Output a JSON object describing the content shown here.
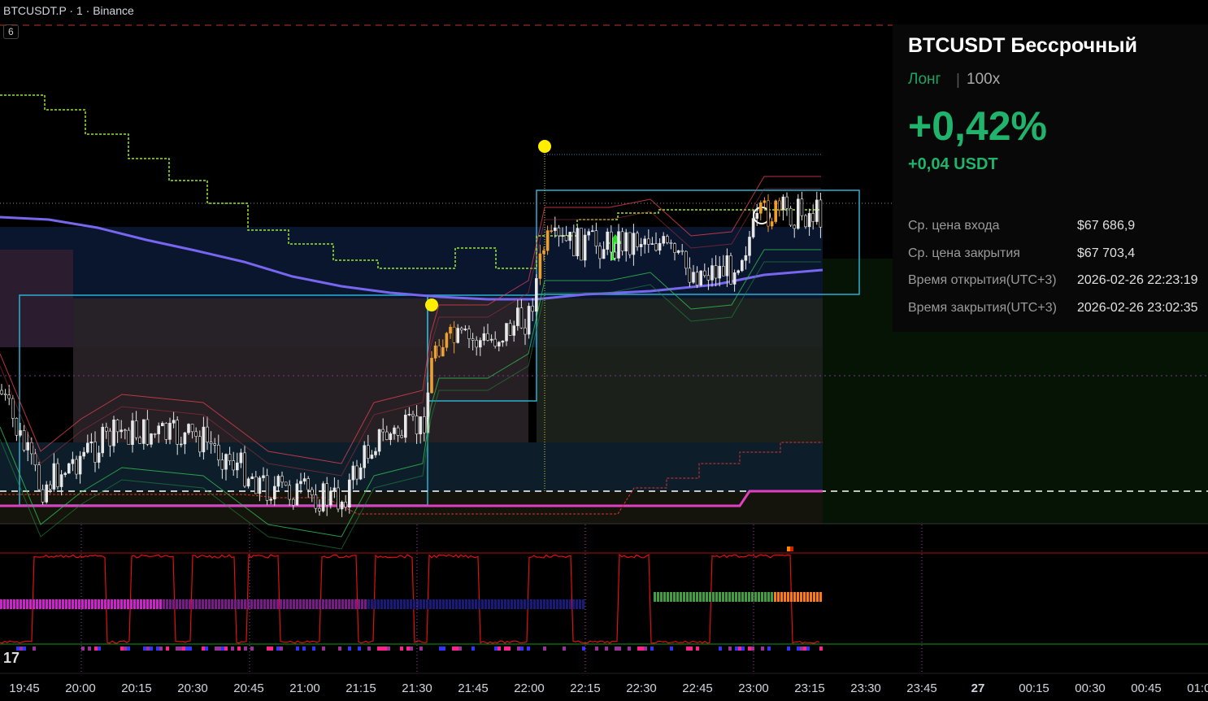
{
  "header": {
    "symbol": "BTCUSDT.P · 1 · Binance",
    "indicator_count": "6"
  },
  "time_axis": [
    "19:45",
    "20:00",
    "20:15",
    "20:30",
    "20:45",
    "21:00",
    "21:15",
    "21:30",
    "21:45",
    "22:00",
    "22:15",
    "22:30",
    "22:45",
    "23:00",
    "23:15",
    "23:30",
    "23:45",
    "27",
    "00:15",
    "00:30",
    "00:45",
    "01:00"
  ],
  "position_card": {
    "title": "BTCUSDT Бессрочный",
    "side": "Лонг",
    "leverage": "100x",
    "pnl_percent": "+0,42%",
    "pnl_amount": "+0,04 USDT",
    "rows": [
      {
        "label": "Ср. цена входа",
        "value": "$67 686,9"
      },
      {
        "label": "Ср. цена закрытия",
        "value": "$67 703,4"
      },
      {
        "label": "Время открытия(UTC+3)",
        "value": "2026-02-26 22:23:19"
      },
      {
        "label": "Время закрытия(UTC+3)",
        "value": "2026-02-26 23:02:35"
      }
    ]
  }
}
